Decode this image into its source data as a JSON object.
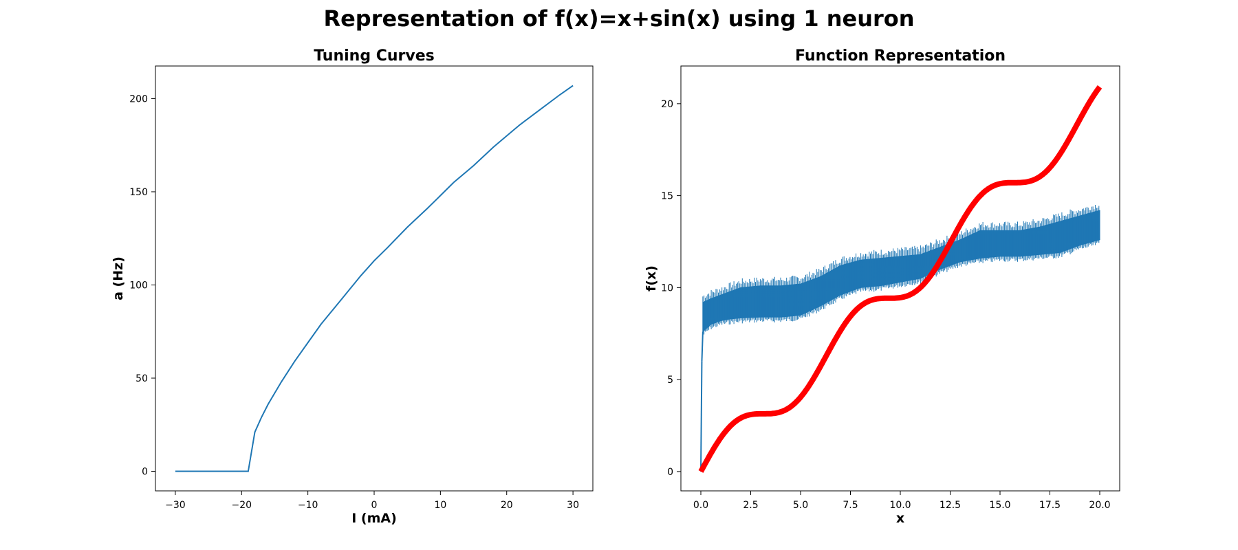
{
  "figure": {
    "title": "Representation of f(x)=x+sin(x) using 1 neuron"
  },
  "chart_data": [
    {
      "type": "line",
      "title": "Tuning Curves",
      "xlabel": "I (mA)",
      "ylabel": "a (Hz)",
      "xlim": [
        -33,
        33
      ],
      "ylim": [
        -10.5,
        217.5
      ],
      "xticks": [
        -30,
        -20,
        -10,
        0,
        10,
        20,
        30
      ],
      "yticks": [
        0,
        50,
        100,
        150,
        200
      ],
      "grid": false,
      "series": [
        {
          "color": "#1f77b4",
          "x": [
            -30,
            -19,
            -18,
            -17,
            -16,
            -14,
            -12,
            -10,
            -8,
            -5,
            -2,
            0,
            2,
            5,
            8,
            10,
            12,
            15,
            18,
            20,
            22,
            25,
            28,
            30
          ],
          "y": [
            0,
            0,
            21,
            29,
            36,
            48,
            59,
            69,
            79,
            92,
            105,
            113,
            120,
            131,
            141,
            148,
            155,
            164,
            174,
            180,
            186,
            194,
            202,
            207
          ]
        }
      ]
    },
    {
      "type": "line",
      "title": "Function Representation",
      "xlabel": "x",
      "ylabel": "f(x)",
      "xlim": [
        -1,
        21
      ],
      "ylim": [
        -1.05,
        22.05
      ],
      "xticks": [
        0.0,
        2.5,
        5.0,
        7.5,
        10.0,
        12.5,
        15.0,
        17.5,
        20.0
      ],
      "yticks": [
        0,
        5,
        10,
        15,
        20
      ],
      "grid": false,
      "series": [
        {
          "color": "#ff0000",
          "function": "x+sin(x)",
          "x_range": [
            0,
            20
          ]
        },
        {
          "color": "#1f77b4",
          "band_x": [
            0.1,
            0.5,
            1,
            1.5,
            2,
            3,
            4,
            5,
            6,
            7,
            8,
            9,
            10,
            11,
            12,
            13,
            14,
            15,
            16,
            17,
            18,
            19,
            20
          ],
          "band_low": [
            7.6,
            8.0,
            8.2,
            8.3,
            8.35,
            8.4,
            8.4,
            8.5,
            9.0,
            9.6,
            10.0,
            10.1,
            10.3,
            10.5,
            11.0,
            11.4,
            11.6,
            11.7,
            11.7,
            11.8,
            11.9,
            12.3,
            12.6
          ],
          "band_high": [
            9.2,
            9.4,
            9.6,
            9.8,
            10.0,
            10.1,
            10.1,
            10.2,
            10.6,
            11.2,
            11.5,
            11.6,
            11.7,
            11.8,
            12.2,
            12.6,
            13.1,
            13.1,
            13.1,
            13.3,
            13.6,
            13.9,
            14.2
          ],
          "onset_x": [
            0.0,
            0.05
          ],
          "onset_y": [
            0.0,
            6.0
          ]
        }
      ]
    }
  ]
}
